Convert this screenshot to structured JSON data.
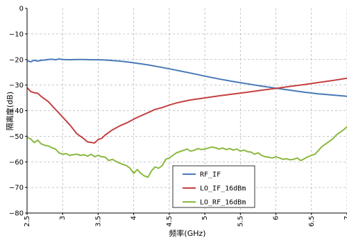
{
  "chart_data": {
    "type": "line",
    "title": "",
    "xlabel": "频率(GHz)",
    "ylabel": "隔离度(dB)",
    "xlim": [
      2.5,
      7.0
    ],
    "ylim": [
      -80,
      0
    ],
    "xticks": [
      "2.5",
      "3",
      "3.5",
      "4",
      "4.5",
      "5",
      "5.5",
      "6",
      "6.5",
      "7"
    ],
    "yticks": [
      "0",
      "−10",
      "−20",
      "−30",
      "−40",
      "−50",
      "−60",
      "−70",
      "−80"
    ],
    "grid": true,
    "legend_position": "bottom-center",
    "series": [
      {
        "name": "RF_IF",
        "color": "#4878b8",
        "x": [
          2.5,
          2.55,
          2.6,
          2.65,
          2.7,
          2.75,
          2.8,
          2.85,
          2.9,
          2.95,
          3.0,
          3.1,
          3.2,
          3.3,
          3.4,
          3.5,
          3.6,
          3.7,
          3.8,
          3.9,
          4.0,
          4.2,
          4.4,
          4.6,
          4.8,
          5.0,
          5.2,
          5.4,
          5.6,
          5.8,
          6.0,
          6.2,
          6.4,
          6.6,
          6.8,
          7.0
        ],
        "y": [
          -20.5,
          -20.9,
          -20.3,
          -20.6,
          -20.3,
          -20.2,
          -20.0,
          -19.9,
          -20.1,
          -19.8,
          -20.0,
          -20.1,
          -20.0,
          -20.0,
          -20.1,
          -20.1,
          -20.2,
          -20.4,
          -20.6,
          -20.9,
          -21.3,
          -22.1,
          -23.1,
          -24.2,
          -25.3,
          -26.5,
          -27.6,
          -28.6,
          -29.5,
          -30.4,
          -31.2,
          -32.0,
          -32.8,
          -33.4,
          -33.9,
          -34.4
        ]
      },
      {
        "name": "LO_IF_16dBm",
        "color": "#c44040",
        "x": [
          2.5,
          2.55,
          2.6,
          2.65,
          2.7,
          2.8,
          2.9,
          3.0,
          3.1,
          3.2,
          3.3,
          3.35,
          3.4,
          3.45,
          3.5,
          3.55,
          3.6,
          3.7,
          3.8,
          3.9,
          4.0,
          4.1,
          4.2,
          4.3,
          4.4,
          4.5,
          4.6,
          4.8,
          5.0,
          5.2,
          5.4,
          5.6,
          5.8,
          6.0,
          6.2,
          6.4,
          6.6,
          6.8,
          7.0
        ],
        "y": [
          -31.0,
          -32.5,
          -33.0,
          -33.2,
          -34.5,
          -36.5,
          -39.5,
          -42.5,
          -45.5,
          -49.0,
          -51.0,
          -52.2,
          -52.4,
          -52.6,
          -51.3,
          -50.8,
          -49.5,
          -47.5,
          -46.0,
          -44.8,
          -43.3,
          -42.0,
          -40.8,
          -39.5,
          -38.8,
          -37.8,
          -37.0,
          -35.8,
          -35.0,
          -34.2,
          -33.5,
          -32.8,
          -32.0,
          -31.3,
          -30.5,
          -29.8,
          -29.0,
          -28.2,
          -27.3
        ]
      },
      {
        "name": "LO_RF_16dBm",
        "color": "#8ab83e",
        "x": [
          2.5,
          2.55,
          2.6,
          2.65,
          2.7,
          2.75,
          2.8,
          2.85,
          2.9,
          2.95,
          3.0,
          3.05,
          3.1,
          3.15,
          3.2,
          3.25,
          3.3,
          3.35,
          3.4,
          3.45,
          3.5,
          3.55,
          3.6,
          3.65,
          3.7,
          3.75,
          3.8,
          3.85,
          3.9,
          3.95,
          4.0,
          4.05,
          4.1,
          4.15,
          4.2,
          4.25,
          4.3,
          4.35,
          4.4,
          4.45,
          4.5,
          4.55,
          4.6,
          4.65,
          4.7,
          4.75,
          4.8,
          4.85,
          4.9,
          4.95,
          5.0,
          5.05,
          5.1,
          5.15,
          5.2,
          5.25,
          5.3,
          5.35,
          5.4,
          5.45,
          5.5,
          5.55,
          5.6,
          5.65,
          5.7,
          5.75,
          5.8,
          5.85,
          5.9,
          5.95,
          6.0,
          6.05,
          6.1,
          6.15,
          6.2,
          6.25,
          6.3,
          6.35,
          6.4,
          6.45,
          6.5,
          6.55,
          6.6,
          6.65,
          6.7,
          6.75,
          6.8,
          6.85,
          6.9,
          6.95,
          7.0
        ],
        "y": [
          -50.5,
          -51.0,
          -52.5,
          -51.5,
          -53.0,
          -53.5,
          -53.8,
          -54.5,
          -55.0,
          -56.5,
          -57.0,
          -56.8,
          -57.5,
          -57.2,
          -57.0,
          -57.5,
          -57.2,
          -57.8,
          -57.0,
          -58.0,
          -57.5,
          -58.0,
          -58.2,
          -59.5,
          -59.0,
          -59.8,
          -60.5,
          -61.0,
          -61.5,
          -62.5,
          -64.5,
          -63.0,
          -64.5,
          -65.5,
          -66.0,
          -63.5,
          -62.0,
          -62.5,
          -61.5,
          -59.0,
          -58.5,
          -57.5,
          -56.5,
          -56.0,
          -55.5,
          -55.0,
          -55.8,
          -55.5,
          -54.8,
          -55.2,
          -55.0,
          -54.6,
          -54.2,
          -54.5,
          -55.0,
          -54.6,
          -55.2,
          -54.8,
          -55.4,
          -55.0,
          -55.8,
          -55.4,
          -56.0,
          -56.2,
          -57.0,
          -56.5,
          -57.5,
          -58.0,
          -58.2,
          -58.5,
          -58.0,
          -58.5,
          -59.0,
          -58.8,
          -59.2,
          -59.0,
          -58.5,
          -59.5,
          -58.8,
          -58.0,
          -57.5,
          -57.0,
          -55.5,
          -54.0,
          -53.0,
          -52.0,
          -51.0,
          -49.5,
          -48.5,
          -47.5,
          -46.3
        ]
      }
    ]
  }
}
